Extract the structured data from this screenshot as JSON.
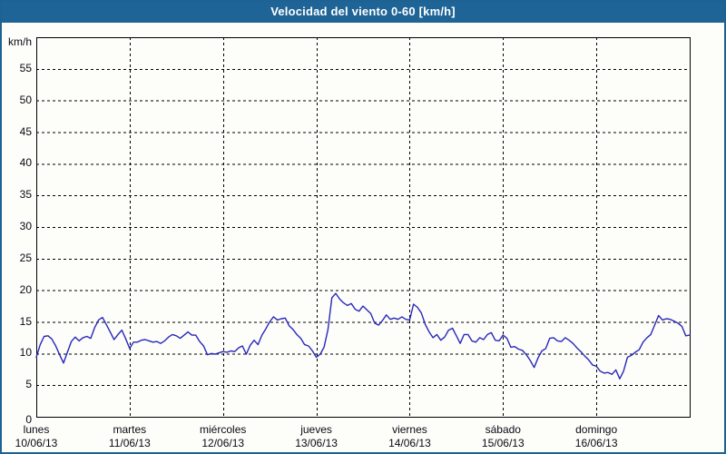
{
  "window": {
    "title": "Velocidad del viento 0-60 [km/h]"
  },
  "colors": {
    "titlebar_bg": "#1e6496",
    "frame_border": "#1d6292",
    "title_text": "#ffffff",
    "page_bg": "#fdfdfa",
    "plot_border": "#000000",
    "grid_line": "#000000",
    "axis_text": "#0a0a14",
    "series_line": "#2828bb"
  },
  "chart_data": {
    "type": "line",
    "title": "Velocidad del viento 0-60 [km/h]",
    "ylabel": "km/h",
    "xlabel": "",
    "ylim": [
      0,
      60
    ],
    "yticks": [
      0,
      5,
      10,
      15,
      20,
      25,
      30,
      35,
      40,
      45,
      50,
      55
    ],
    "grid": "dashed",
    "legend": "none",
    "x_hours_total": 168,
    "x_days": [
      {
        "name": "lunes",
        "date": "10/06/13"
      },
      {
        "name": "martes",
        "date": "11/06/13"
      },
      {
        "name": "miércoles",
        "date": "12/06/13"
      },
      {
        "name": "jueves",
        "date": "13/06/13"
      },
      {
        "name": "viernes",
        "date": "14/06/13"
      },
      {
        "name": "sábado",
        "date": "15/06/13"
      },
      {
        "name": "domingo",
        "date": "16/06/13"
      }
    ],
    "series": [
      {
        "name": "Velocidad del viento",
        "unit": "km/h",
        "color": "#2828bb",
        "sample_interval_hours": 1,
        "start_hour": 0,
        "values": [
          9.4,
          11.4,
          12.7,
          12.8,
          12.3,
          11.2,
          9.8,
          8.5,
          10.2,
          11.9,
          12.6,
          12.0,
          12.5,
          12.7,
          12.4,
          14.1,
          15.3,
          15.7,
          14.6,
          13.4,
          12.2,
          13.0,
          13.7,
          12.3,
          10.8,
          11.8,
          11.8,
          12.1,
          12.2,
          12.0,
          11.8,
          11.9,
          11.6,
          12.0,
          12.6,
          13.0,
          12.8,
          12.4,
          12.9,
          13.4,
          12.9,
          12.9,
          11.9,
          11.2,
          9.8,
          10.0,
          9.9,
          10.1,
          10.3,
          10.2,
          10.4,
          10.3,
          10.9,
          11.2,
          9.9,
          11.3,
          12.1,
          11.4,
          12.9,
          13.9,
          15.0,
          15.8,
          15.3,
          15.5,
          15.6,
          14.4,
          13.8,
          13.0,
          12.4,
          11.4,
          11.2,
          10.4,
          9.4,
          9.9,
          11.0,
          13.8,
          18.8,
          19.5,
          18.6,
          18.0,
          17.6,
          17.9,
          17.0,
          16.7,
          17.5,
          16.9,
          16.3,
          14.8,
          14.5,
          15.2,
          16.1,
          15.4,
          15.6,
          15.4,
          15.8,
          15.4,
          15.3,
          17.8,
          17.3,
          16.4,
          14.6,
          13.4,
          12.5,
          13.0,
          12.1,
          12.6,
          13.7,
          14.0,
          12.8,
          11.6,
          13.0,
          13.0,
          12.0,
          11.8,
          12.5,
          12.2,
          13.0,
          13.3,
          12.1,
          12.0,
          12.9,
          12.4,
          11.0,
          11.1,
          10.7,
          10.5,
          9.8,
          8.9,
          7.8,
          9.3,
          10.4,
          10.8,
          12.4,
          12.5,
          12.0,
          11.9,
          12.5,
          12.1,
          11.6,
          10.9,
          10.3,
          9.6,
          9.0,
          8.2,
          8.0,
          7.2,
          6.9,
          7.0,
          6.7,
          7.4,
          6.0,
          7.2,
          9.4,
          9.7,
          10.2,
          10.6,
          11.8,
          12.5,
          13.0,
          14.5,
          16.0,
          15.3,
          15.5,
          15.4,
          15.1,
          14.8,
          14.3,
          12.8,
          12.9
        ]
      }
    ]
  }
}
